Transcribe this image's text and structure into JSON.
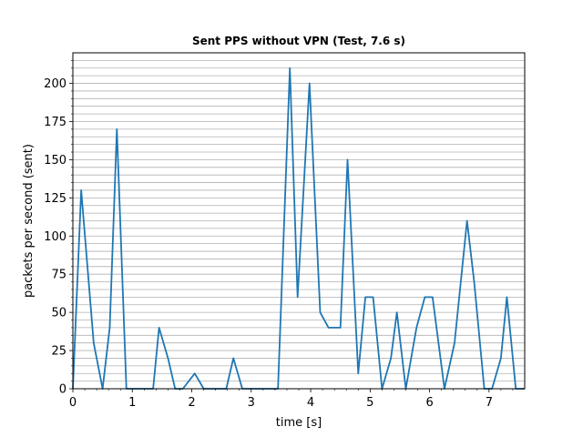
{
  "chart_data": {
    "type": "line",
    "title": "Sent PPS without VPN (Test, 7.6 s)",
    "xlabel": "time [s]",
    "ylabel": "packets per second (sent)",
    "xlim": [
      0,
      7.6
    ],
    "ylim": [
      0,
      220
    ],
    "xticks": [
      0,
      1,
      2,
      3,
      4,
      5,
      6,
      7
    ],
    "yticks": [
      0,
      25,
      50,
      75,
      100,
      125,
      150,
      175,
      200
    ],
    "grid": "horizontal-minor",
    "grid_step": 5,
    "legend": "none",
    "colors": {
      "line": "#1f77b4",
      "grid": "#b0b0b0",
      "axis": "#000000"
    },
    "series": [
      {
        "x": [
          0.0,
          0.14,
          0.35,
          0.5,
          0.62,
          0.74,
          0.9,
          1.05,
          1.2,
          1.35,
          1.45,
          1.6,
          1.72,
          1.85,
          2.05,
          2.2,
          2.45,
          2.58,
          2.7,
          2.85,
          3.0,
          3.2,
          3.45,
          3.65,
          3.78,
          3.98,
          4.16,
          4.3,
          4.5,
          4.62,
          4.8,
          4.92,
          5.05,
          5.2,
          5.35,
          5.45,
          5.6,
          5.78,
          5.92,
          6.05,
          6.25,
          6.42,
          6.63,
          6.75,
          6.92,
          7.05,
          7.2,
          7.3,
          7.45,
          7.6
        ],
        "y": [
          0,
          130,
          30,
          0,
          40,
          170,
          0,
          0,
          0,
          0,
          40,
          20,
          0,
          0,
          10,
          0,
          0,
          0,
          20,
          0,
          0,
          0,
          0,
          210,
          60,
          200,
          50,
          40,
          40,
          150,
          10,
          60,
          60,
          0,
          20,
          50,
          0,
          40,
          60,
          60,
          0,
          30,
          110,
          70,
          0,
          0,
          20,
          60,
          0,
          0
        ]
      }
    ]
  }
}
